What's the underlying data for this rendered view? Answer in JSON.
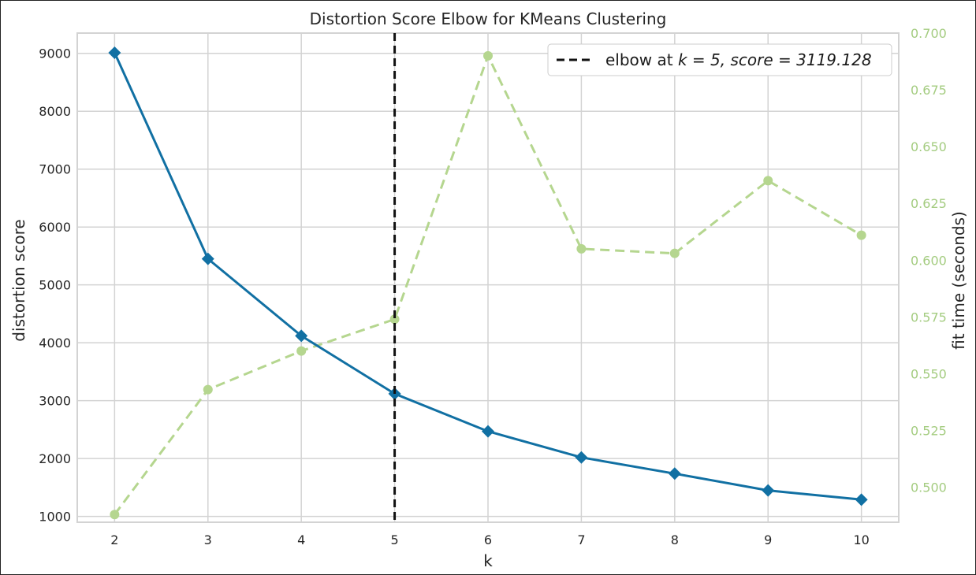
{
  "chart_data": {
    "type": "line",
    "title": "Distortion Score Elbow for KMeans Clustering",
    "xlabel": "k",
    "ylabel": "distortion score",
    "y2label": "fit time (seconds)",
    "x": [
      2,
      3,
      4,
      5,
      6,
      7,
      8,
      9,
      10
    ],
    "xlim": [
      1.6,
      10.4
    ],
    "ylim": [
      900,
      9350
    ],
    "y2lim": [
      0.4846,
      0.7
    ],
    "xticks": [
      "2",
      "3",
      "4",
      "5",
      "6",
      "7",
      "8",
      "9",
      "10"
    ],
    "yticks": [
      "1000",
      "2000",
      "3000",
      "4000",
      "5000",
      "6000",
      "7000",
      "8000",
      "9000"
    ],
    "y2ticks": [
      "0.500",
      "0.525",
      "0.550",
      "0.575",
      "0.600",
      "0.625",
      "0.650",
      "0.675",
      "0.700"
    ],
    "grid": true,
    "legend": {
      "placement": "top-right",
      "label_main": "elbow at ",
      "label_math": "k = 5, score = 3119.128"
    },
    "elbow": {
      "k": 5,
      "score": 3119.128
    },
    "series": [
      {
        "axis": "left",
        "values": [
          9010,
          5450,
          4120,
          3119.128,
          2470,
          2020,
          1740,
          1450,
          1290
        ],
        "color": "#1170a3",
        "marker": "diamond",
        "style": "solid"
      },
      {
        "axis": "right",
        "values": [
          0.488,
          0.543,
          0.56,
          0.574,
          0.69,
          0.605,
          0.603,
          0.635,
          0.611
        ],
        "color": "#b5d68f",
        "marker": "circle",
        "style": "dashed"
      }
    ],
    "colors": {
      "grid": "#d3d3d3",
      "axis_text": "#262626",
      "right_axis_text": "#a4cc80",
      "elbow_line": "#111111"
    }
  }
}
